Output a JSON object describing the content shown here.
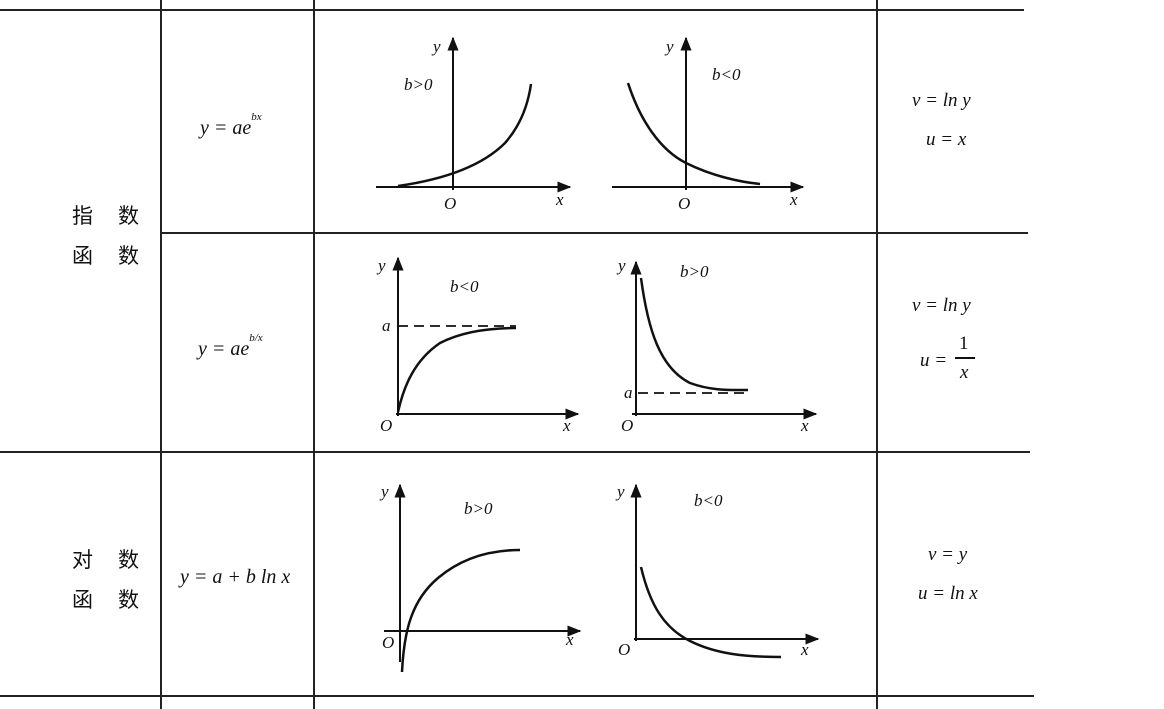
{
  "rows": [
    {
      "category": [
        "指　数",
        "函　数"
      ],
      "formula": {
        "base": "y = ae",
        "exp": "bx"
      },
      "graphs": [
        {
          "condition": "b>0",
          "origin": "O",
          "x_label": "x",
          "y_label": "y"
        },
        {
          "condition": "b<0",
          "origin": "O",
          "x_label": "x",
          "y_label": "y"
        }
      ],
      "substitution": [
        "v = ln y",
        "u = x"
      ]
    },
    {
      "formula": {
        "base": "y = ae",
        "exp": "b/x"
      },
      "graphs": [
        {
          "condition": "b<0",
          "origin": "O",
          "x_label": "x",
          "y_label": "y",
          "asymptote": "a"
        },
        {
          "condition": "b>0",
          "origin": "O",
          "x_label": "x",
          "y_label": "y",
          "asymptote": "a"
        }
      ],
      "substitution": [
        "v = ln y",
        "u = 1/x"
      ],
      "fraction": {
        "num": "1",
        "den": "x",
        "lhs": "u ="
      }
    },
    {
      "category": [
        "对　数",
        "函　数"
      ],
      "formula": {
        "base": "y = a + b ln x"
      },
      "graphs": [
        {
          "condition": "b>0",
          "origin": "O",
          "x_label": "x",
          "y_label": "y"
        },
        {
          "condition": "b<0",
          "origin": "O",
          "x_label": "x",
          "y_label": "y"
        }
      ],
      "substitution": [
        "v = y",
        "u = ln x"
      ]
    }
  ]
}
